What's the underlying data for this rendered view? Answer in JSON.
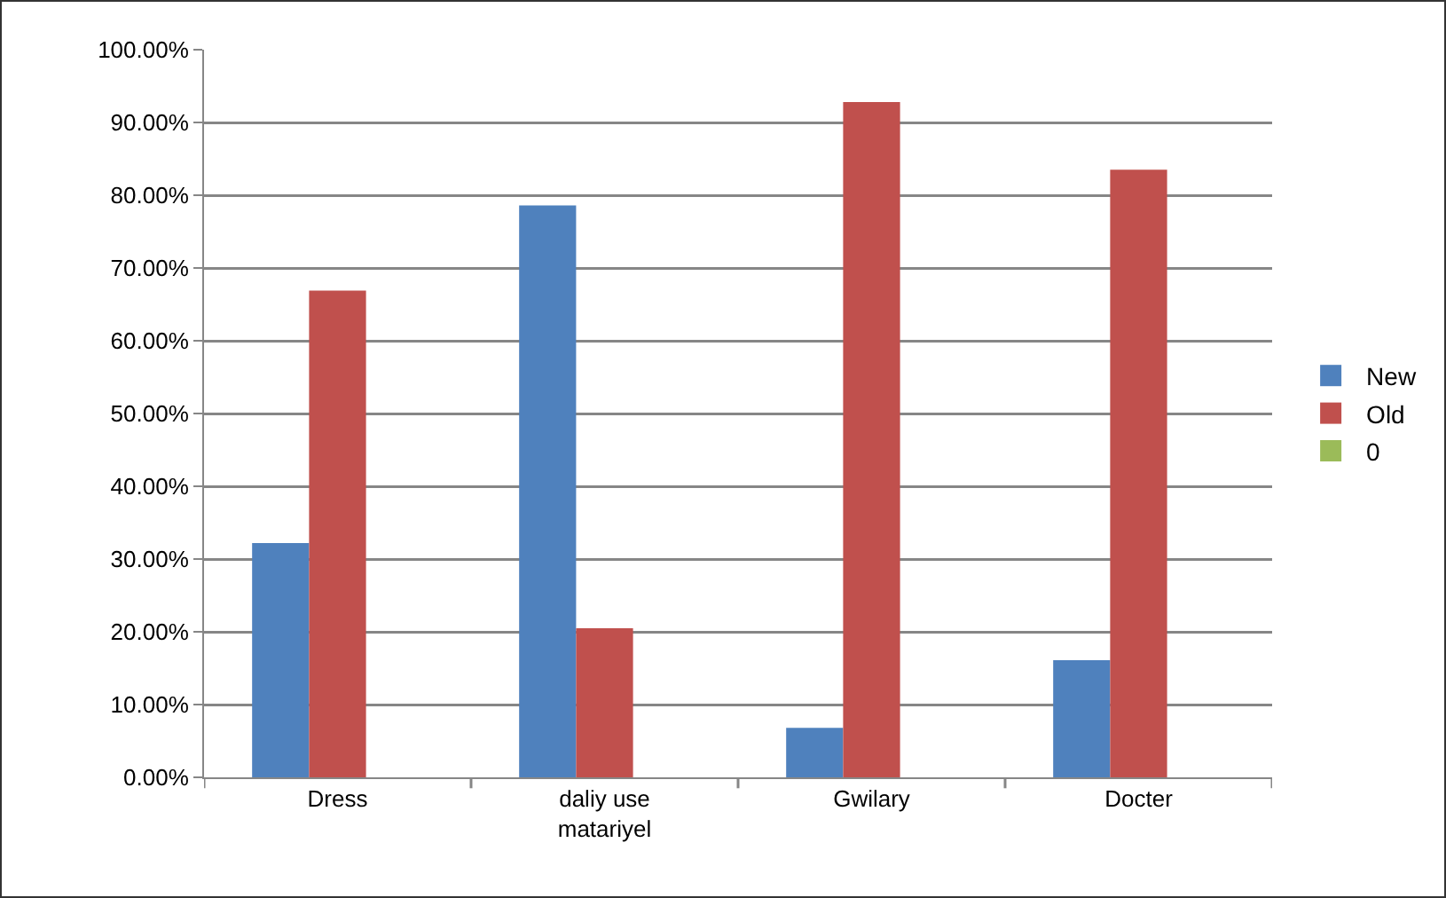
{
  "chart_data": {
    "type": "bar",
    "categories": [
      "Dress",
      "daliy use\nmatariyel",
      "Gwilary",
      "Docter"
    ],
    "series": [
      {
        "name": "New",
        "color": "#4f81bd",
        "values": [
          32.2,
          78.6,
          6.8,
          16.1
        ]
      },
      {
        "name": "Old",
        "color": "#c0504d",
        "values": [
          66.9,
          20.5,
          92.8,
          83.5
        ]
      },
      {
        "name": "0",
        "color": "#9bbb59",
        "values": [
          0,
          0,
          0,
          0
        ]
      }
    ],
    "ylim": [
      0,
      100
    ],
    "yticks": [
      {
        "value": 0,
        "label": "0.00%"
      },
      {
        "value": 10,
        "label": "10.00%"
      },
      {
        "value": 20,
        "label": "20.00%"
      },
      {
        "value": 30,
        "label": "30.00%"
      },
      {
        "value": 40,
        "label": "40.00%"
      },
      {
        "value": 50,
        "label": "50.00%"
      },
      {
        "value": 60,
        "label": "60.00%"
      },
      {
        "value": 70,
        "label": "70.00%"
      },
      {
        "value": 80,
        "label": "80.00%"
      },
      {
        "value": 90,
        "label": "90.00%"
      },
      {
        "value": 100,
        "label": "100.00%"
      }
    ],
    "grid": "y",
    "legend": "right"
  }
}
